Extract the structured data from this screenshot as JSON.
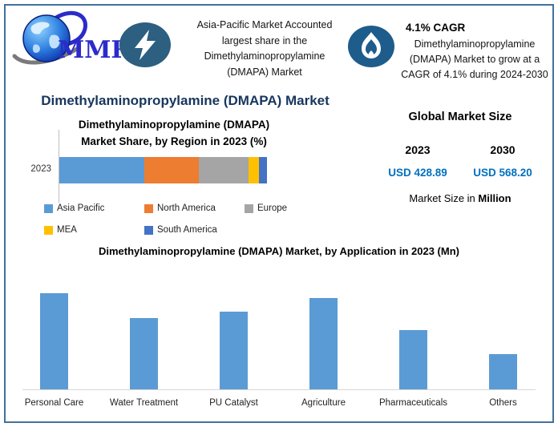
{
  "theme": {
    "border_color": "#41719C",
    "main_title_color": "#17365D",
    "value_text_color": "#0070C0",
    "lightning_circle_color": "#2C5F80",
    "flame_circle_color": "#1E5C8C",
    "logo_text_color": "#2B2BCC"
  },
  "icons": {
    "logo": "mmr-globe-logo",
    "headline_icon": "lightning-icon",
    "growth_icon": "flame-icon"
  },
  "header": {
    "logo_text": "MMR",
    "headline_lines": [
      "Asia-Pacific Market Accounted",
      "largest share in the",
      "Dimethylaminopropylamine",
      "(DMAPA) Market"
    ],
    "cagr": {
      "title": "4.1% CAGR",
      "lines": [
        "Dimethylaminopropylamine",
        "(DMAPA) Market to grow at a",
        "CAGR of 4.1% during 2024-2030"
      ]
    }
  },
  "main_title": "Dimethylaminopropylamine (DMAPA) Market",
  "market_size_panel": {
    "title": "Global Market Size",
    "years": [
      "2023",
      "2030"
    ],
    "values": [
      "USD 428.89",
      "USD 568.20"
    ],
    "footnote_prefix": "Market Size in ",
    "footnote_bold": "Million"
  },
  "chart_data": [
    {
      "type": "bar",
      "orientation": "horizontal-stacked",
      "title_lines": [
        "Dimethylaminopropylamine (DMAPA)",
        "Market Share, by Region in 2023 (%)"
      ],
      "categories": [
        "2023"
      ],
      "series": [
        {
          "name": "Asia Pacific",
          "values": [
            41
          ],
          "color": "#5B9BD5"
        },
        {
          "name": "North America",
          "values": [
            26
          ],
          "color": "#ED7D31"
        },
        {
          "name": "Europe",
          "values": [
            24
          ],
          "color": "#A5A5A5"
        },
        {
          "name": "MEA",
          "values": [
            5
          ],
          "color": "#FFC000"
        },
        {
          "name": "South America",
          "values": [
            4
          ],
          "color": "#4472C4"
        }
      ],
      "unit": "%",
      "xlim": [
        0,
        100
      ],
      "legend_position": "bottom",
      "values_note": "segment shares estimated from bar segment widths"
    },
    {
      "type": "bar",
      "orientation": "vertical",
      "title": "Dimethylaminopropylamine (DMAPA) Market, by Application in 2023 (Mn)",
      "categories": [
        "Personal Care",
        "Water Treatment",
        "PU Catalyst",
        "Agriculture",
        "Pharmaceuticals",
        "Others"
      ],
      "values": [
        100,
        74,
        81,
        95,
        62,
        37
      ],
      "values_note": "relative bar heights as % of tallest bar; chart shows no y-axis scale",
      "bar_color": "#5B9BD5",
      "xlabel": "",
      "ylabel": "",
      "grid": false,
      "legend_position": "none"
    }
  ]
}
